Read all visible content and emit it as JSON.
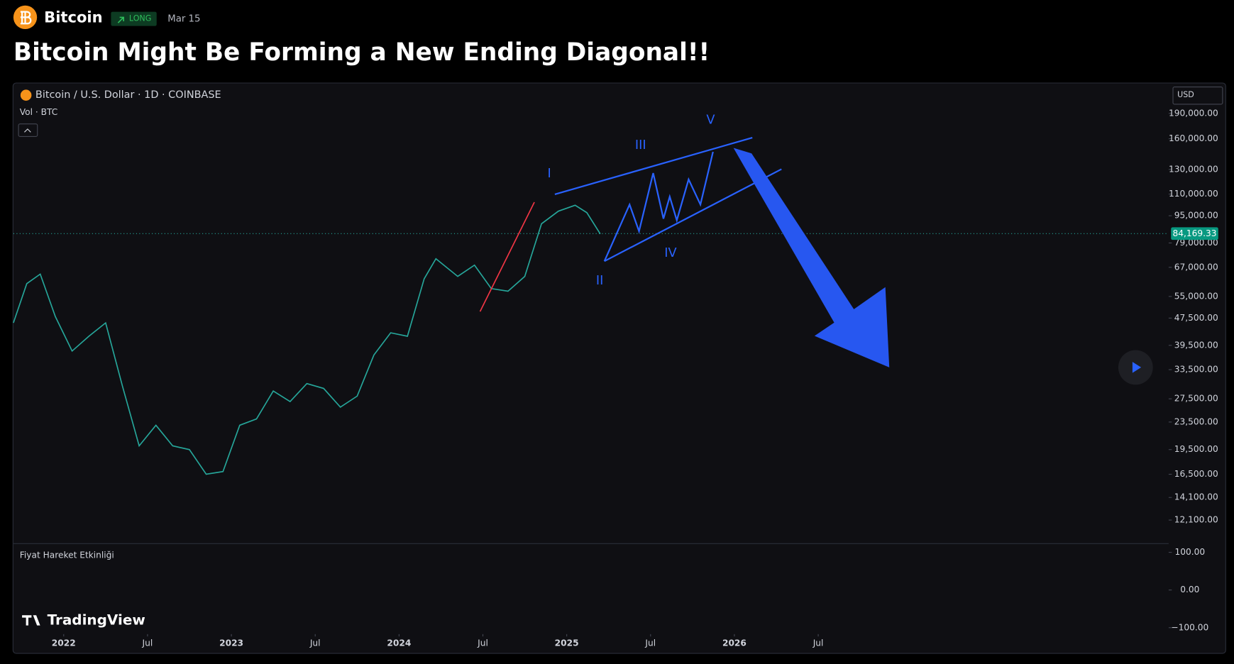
{
  "header": {
    "asset": "Bitcoin",
    "position": "LONG",
    "date": "Mar 15",
    "title": "Bitcoin Might Be Forming a New Ending Diagonal!!"
  },
  "chart_data": {
    "type": "line",
    "symbol": "Bitcoin / U.S. Dollar · 1D · COINBASE",
    "volume_label": "Vol · BTC",
    "currency": "USD",
    "brand": "TradingView",
    "log_scale": true,
    "color": "#26a69a",
    "x": [
      2021.7,
      2021.78,
      2021.86,
      2021.95,
      2022.05,
      2022.15,
      2022.25,
      2022.35,
      2022.45,
      2022.55,
      2022.65,
      2022.75,
      2022.85,
      2022.95,
      2023.05,
      2023.15,
      2023.25,
      2023.35,
      2023.45,
      2023.55,
      2023.65,
      2023.75,
      2023.85,
      2023.95,
      2024.05,
      2024.15,
      2024.22,
      2024.35,
      2024.45,
      2024.55,
      2024.65,
      2024.75,
      2024.85,
      2024.95,
      2025.05,
      2025.12,
      2025.2
    ],
    "values": [
      46000,
      60000,
      64000,
      48000,
      38000,
      42000,
      46000,
      30000,
      20000,
      23000,
      20000,
      19500,
      16500,
      16800,
      23000,
      24000,
      29000,
      27000,
      30500,
      29500,
      26000,
      28000,
      37000,
      43000,
      42000,
      62000,
      71000,
      63000,
      68000,
      58000,
      57000,
      63000,
      90000,
      98000,
      102000,
      97000,
      84000
    ],
    "xlim": [
      2021.7,
      2028.59
    ],
    "xticks": [
      2022,
      {
        "value": 2022.5,
        "label": "Jul"
      },
      2023,
      {
        "value": 2023.5,
        "label": "Jul"
      },
      2024,
      {
        "value": 2024.5,
        "label": "Jul"
      },
      2025,
      {
        "value": 2025.5,
        "label": "Jul"
      },
      2026,
      {
        "value": 2026.5,
        "label": "Jul"
      }
    ],
    "ylim": [
      10370,
      234000
    ],
    "yticks": [
      {
        "value": 190000,
        "label": "190,000.00"
      },
      {
        "value": 160000,
        "label": "160,000.00"
      },
      {
        "value": 130000,
        "label": "130,000.00"
      },
      {
        "value": 110000,
        "label": "110,000.00"
      },
      {
        "value": 95000,
        "label": "95,000.00"
      },
      {
        "value": 79000,
        "label": "79,000.00"
      },
      {
        "value": 67000,
        "label": "67,000.00"
      },
      {
        "value": 55000,
        "label": "55,000.00"
      },
      {
        "value": 47500,
        "label": "47,500.00"
      },
      {
        "value": 39500,
        "label": "39,500.00"
      },
      {
        "value": 33500,
        "label": "33,500.00"
      },
      {
        "value": 27500,
        "label": "27,500.00"
      },
      {
        "value": 23500,
        "label": "23,500.00"
      },
      {
        "value": 19500,
        "label": "19,500.00"
      },
      {
        "value": 16500,
        "label": "16,500.00"
      },
      {
        "value": 14100,
        "label": "14,100.00"
      },
      {
        "value": 12100,
        "label": "12,100.00"
      }
    ],
    "last_price": {
      "value": 84169.33,
      "label": "84,169.33"
    },
    "annotations": [
      "I",
      "II",
      "III",
      "IV",
      "V"
    ],
    "indicator": {
      "title": "Fiyat Hareket Etkinliği",
      "ylim": [
        -115,
        121
      ],
      "yticks": [
        {
          "value": 100,
          "label": "100.00"
        },
        {
          "value": 0,
          "label": "0.00"
        },
        {
          "value": -100,
          "label": "−100.00"
        }
      ]
    }
  }
}
